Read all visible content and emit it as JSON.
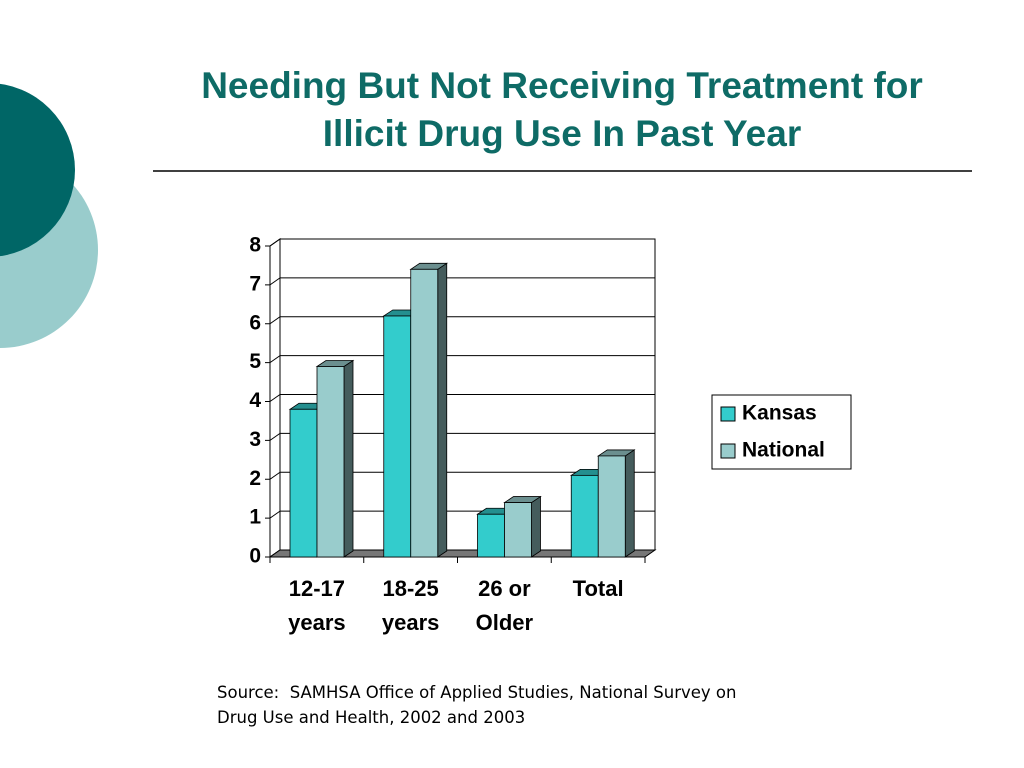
{
  "chart_data": {
    "type": "bar3d",
    "title": "Needing But Not Receiving Treatment for Illicit Drug Use In Past Year",
    "categories": [
      "12-17 years",
      "18-25 years",
      "26 or Older",
      "Total"
    ],
    "series": [
      {
        "name": "Kansas",
        "color": "#33cccc",
        "values": [
          3.8,
          6.2,
          1.1,
          2.1
        ]
      },
      {
        "name": "National",
        "color": "#99cccc",
        "values": [
          4.9,
          7.4,
          1.4,
          2.6
        ]
      }
    ],
    "ylim": [
      0,
      8
    ],
    "yticks": [
      0,
      1,
      2,
      3,
      4,
      5,
      6,
      7,
      8
    ],
    "grid": true,
    "legend": "right",
    "source": "Source:  SAMHSA Office of Applied Studies, National Survey on Drug Use and Health, 2002 and 2003"
  }
}
